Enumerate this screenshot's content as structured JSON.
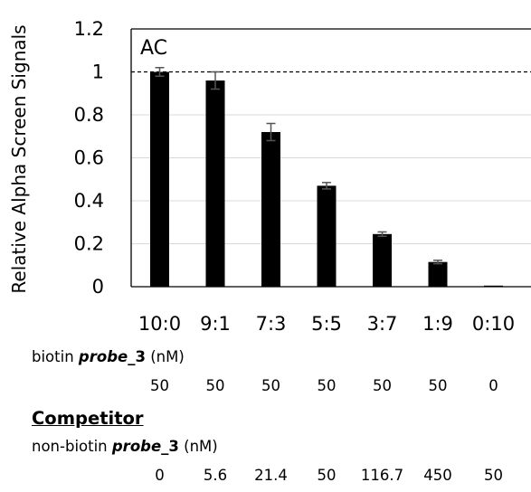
{
  "chart_data": {
    "type": "bar",
    "panel_label": "AC",
    "ylabel": "Relative Alpha Screen Signals",
    "categories": [
      "10:0",
      "9:1",
      "7:3",
      "5:5",
      "3:7",
      "1:9",
      "0:10"
    ],
    "values": [
      1.0,
      0.96,
      0.72,
      0.47,
      0.245,
      0.115,
      0.005
    ],
    "errors": [
      0.02,
      0.04,
      0.04,
      0.015,
      0.01,
      0.008,
      0.002
    ],
    "yticks": [
      "0",
      "0.2",
      "0.4",
      "0.6",
      "0.8",
      "1",
      "1.2"
    ],
    "ylim": [
      0,
      1.2
    ],
    "reference_line": 1,
    "bar_color": "#000000",
    "grid": true
  },
  "table": {
    "biotin": {
      "prefix": "biotin ",
      "probe": "probe",
      "suffix_bold": "_3",
      "unit": " (nM)",
      "values": [
        "50",
        "50",
        "50",
        "50",
        "50",
        "50",
        "0"
      ]
    },
    "competitor_heading": "Competitor",
    "nonbiotin": {
      "prefix": "non-biotin ",
      "probe": "probe",
      "suffix_bold": "_3",
      "unit": " (nM)",
      "values": [
        "0",
        "5.6",
        "21.4",
        "50",
        "116.7",
        "450",
        "50"
      ]
    }
  }
}
